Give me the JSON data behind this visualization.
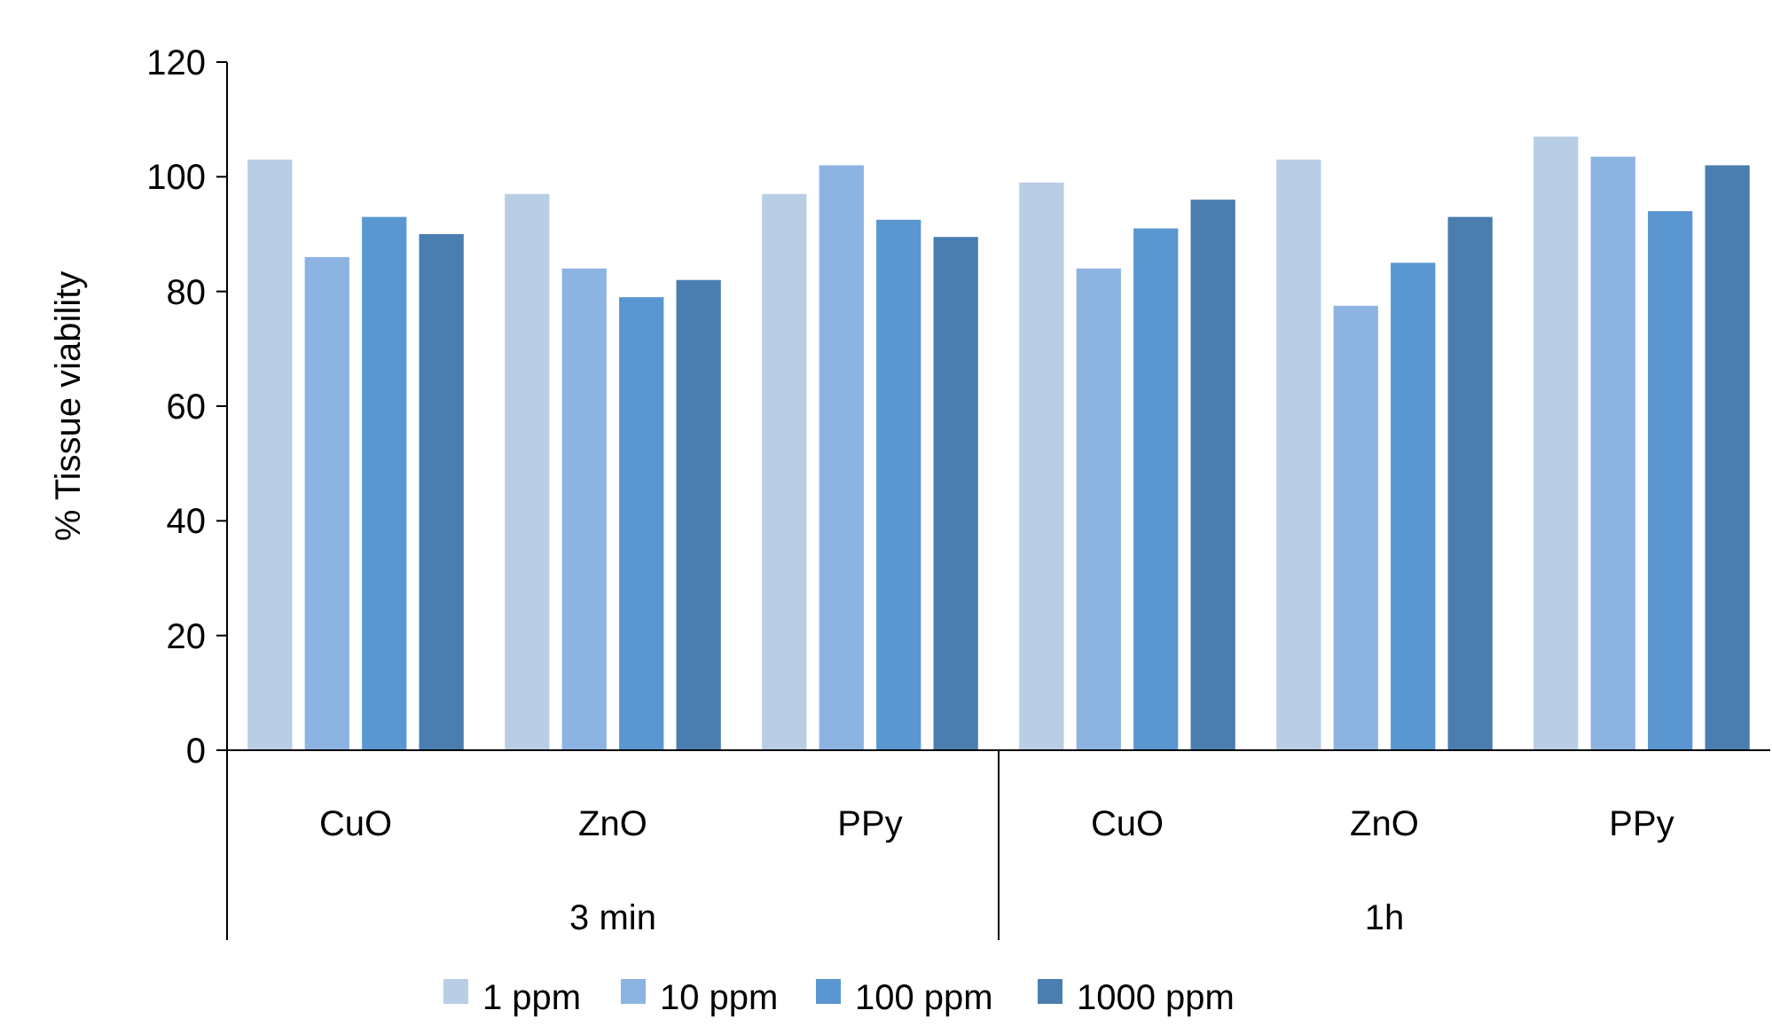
{
  "chart_data": {
    "type": "bar",
    "ylabel": "% Tissue viability",
    "categories": [
      "CuO",
      "ZnO",
      "PPy",
      "CuO",
      "ZnO",
      "PPy"
    ],
    "annotations": [
      "3 min",
      "1h"
    ],
    "ylim": [
      0,
      120
    ],
    "yticks": [
      0,
      20,
      40,
      60,
      80,
      100,
      120
    ],
    "grid": false,
    "legend": "bottom",
    "series": [
      {
        "name": "1 ppm",
        "color": "#b9cde5",
        "values": [
          103,
          97,
          97,
          99,
          103,
          107
        ]
      },
      {
        "name": "10 ppm",
        "color": "#8db3e2",
        "values": [
          86,
          84,
          102,
          84,
          77.5,
          103.5
        ]
      },
      {
        "name": "100 ppm",
        "color": "#5a96d0",
        "values": [
          93,
          79,
          92.5,
          91,
          85,
          94
        ]
      },
      {
        "name": "1000 ppm",
        "color": "#4a7db0",
        "values": [
          90,
          82,
          89.5,
          96,
          93,
          102
        ]
      }
    ]
  }
}
